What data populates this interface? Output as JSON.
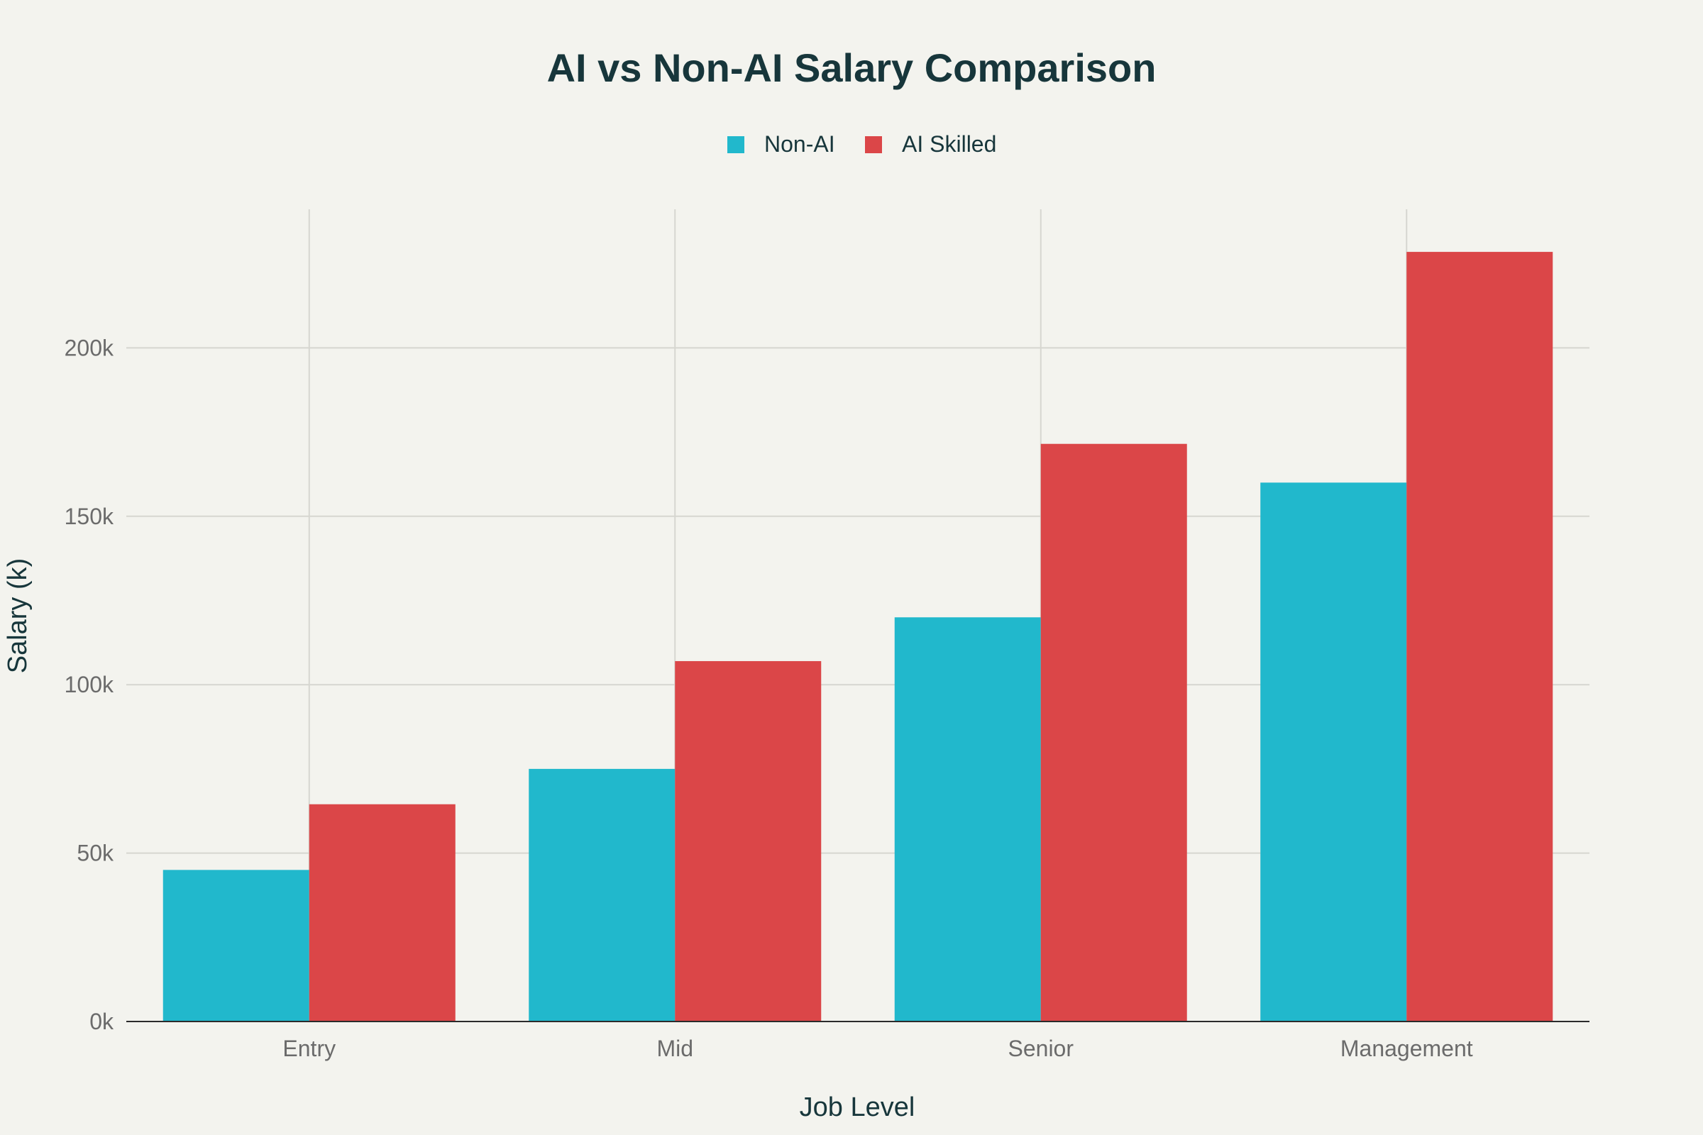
{
  "chart_data": {
    "type": "bar",
    "title": "AI vs Non-AI Salary Comparison",
    "xlabel": "Job Level",
    "ylabel": "Salary (k)",
    "categories": [
      "Entry",
      "Mid",
      "Senior",
      "Management"
    ],
    "series": [
      {
        "name": "Non-AI",
        "values": [
          45,
          75,
          120,
          160
        ],
        "color": "#21b8cc"
      },
      {
        "name": "AI Skilled",
        "values": [
          64.5,
          107,
          171.5,
          228.5
        ],
        "color": "#db4648"
      }
    ],
    "ylim": [
      0,
      230
    ],
    "yticks": [
      0,
      50,
      100,
      150,
      200
    ],
    "ytick_labels": [
      "0k",
      "50k",
      "100k",
      "150k",
      "200k"
    ],
    "legend_position": "top-center",
    "grid": true,
    "colors": {
      "background": "#f3f3ee",
      "title": "#17363b",
      "tick_text": "#6b6b6b",
      "grid": "#d6d6d0",
      "axis": "#2b2b2b"
    }
  }
}
